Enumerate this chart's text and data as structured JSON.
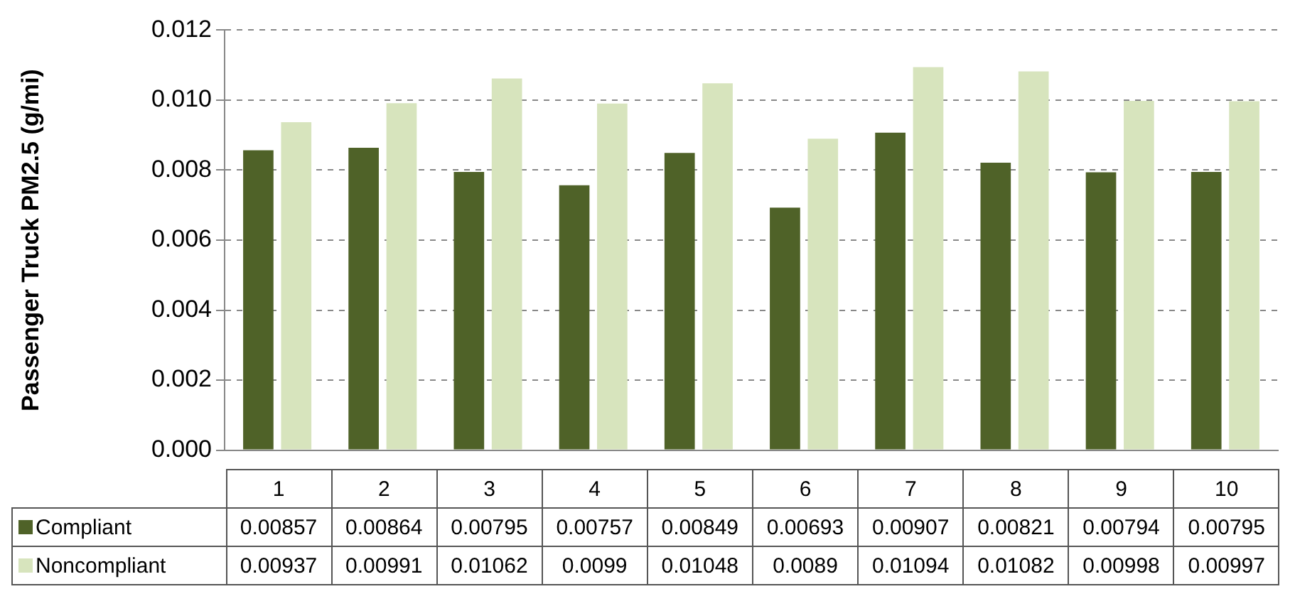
{
  "chart_data": {
    "type": "bar",
    "ylabel": "Passenger Truck PM2.5 (g/mi)",
    "categories": [
      "1",
      "2",
      "3",
      "4",
      "5",
      "6",
      "7",
      "8",
      "9",
      "10"
    ],
    "series": [
      {
        "name": "Compliant",
        "color": "#4f6228",
        "values": [
          0.00857,
          0.00864,
          0.00795,
          0.00757,
          0.00849,
          0.00693,
          0.00907,
          0.00821,
          0.00794,
          0.00795
        ]
      },
      {
        "name": "Noncompliant",
        "color": "#d7e4bd",
        "values": [
          0.00937,
          0.00991,
          0.01062,
          0.0099,
          0.01048,
          0.0089,
          0.01094,
          0.01082,
          0.00998,
          0.00997
        ]
      }
    ],
    "ylim": [
      0,
      0.012
    ],
    "yticks": [
      {
        "value": 0,
        "label": "0.000"
      },
      {
        "value": 0.002,
        "label": "0.002"
      },
      {
        "value": 0.004,
        "label": "0.004"
      },
      {
        "value": 0.006,
        "label": "0.006"
      },
      {
        "value": 0.008,
        "label": "0.008"
      },
      {
        "value": 0.01,
        "label": "0.010"
      },
      {
        "value": 0.012,
        "label": "0.012"
      }
    ],
    "grid": "y",
    "legend": "bottom",
    "data_labels": true
  }
}
